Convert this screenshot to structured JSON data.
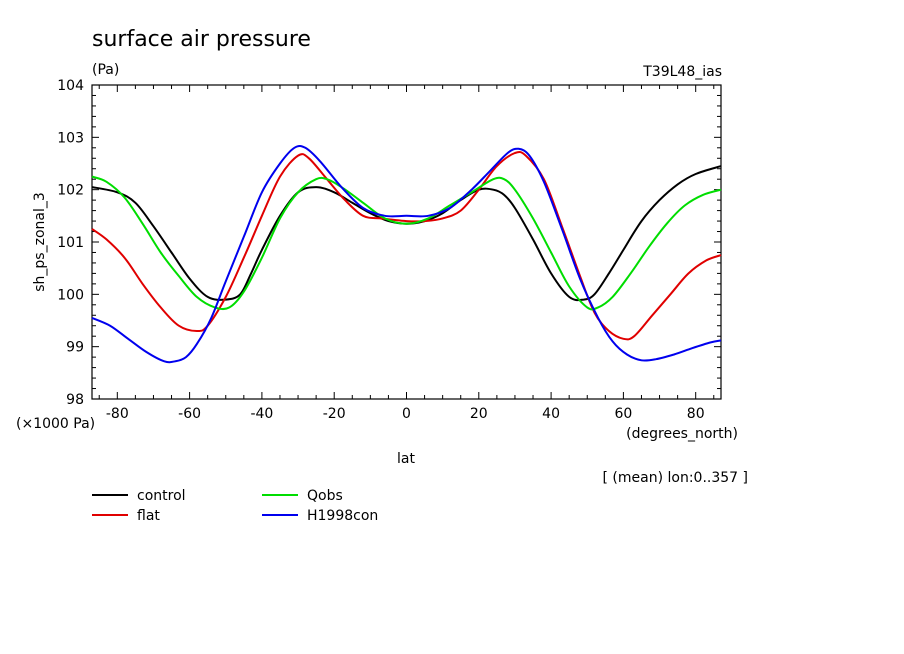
{
  "header": {
    "title": "surface air pressure",
    "unit": "(Pa)",
    "run_label": "T39L48_ias",
    "scale_label": "(×1000 Pa)",
    "x_unit": "(degrees_north)",
    "subset_note": "[ (mean) lon:0..357 ]"
  },
  "chart_data": {
    "type": "line",
    "title": "surface air pressure",
    "xlabel": "lat",
    "ylabel": "sh_ps_zonal_3",
    "xlim": [
      -87,
      87
    ],
    "ylim": [
      98,
      104
    ],
    "x_ticks": [
      -80,
      -60,
      -40,
      -20,
      0,
      20,
      40,
      60,
      80
    ],
    "y_ticks": [
      98,
      99,
      100,
      101,
      102,
      103,
      104
    ],
    "grid": false,
    "legend_position": "bottom-left",
    "series": [
      {
        "name": "control",
        "color": "#000000",
        "points": [
          [
            -87,
            102.05
          ],
          [
            -80,
            101.95
          ],
          [
            -75,
            101.75
          ],
          [
            -70,
            101.3
          ],
          [
            -65,
            100.8
          ],
          [
            -60,
            100.3
          ],
          [
            -55,
            99.95
          ],
          [
            -50,
            99.9
          ],
          [
            -46,
            100.0
          ],
          [
            -43,
            100.4
          ],
          [
            -40,
            100.85
          ],
          [
            -35,
            101.5
          ],
          [
            -30,
            101.95
          ],
          [
            -25,
            102.05
          ],
          [
            -20,
            101.95
          ],
          [
            -15,
            101.75
          ],
          [
            -10,
            101.55
          ],
          [
            -5,
            101.4
          ],
          [
            0,
            101.35
          ],
          [
            5,
            101.4
          ],
          [
            10,
            101.55
          ],
          [
            15,
            101.8
          ],
          [
            20,
            102.0
          ],
          [
            24,
            102.0
          ],
          [
            27,
            101.9
          ],
          [
            30,
            101.65
          ],
          [
            35,
            101.05
          ],
          [
            40,
            100.4
          ],
          [
            45,
            99.95
          ],
          [
            49,
            99.9
          ],
          [
            52,
            100.0
          ],
          [
            56,
            100.4
          ],
          [
            60,
            100.85
          ],
          [
            65,
            101.4
          ],
          [
            70,
            101.8
          ],
          [
            75,
            102.1
          ],
          [
            80,
            102.3
          ],
          [
            87,
            102.45
          ]
        ]
      },
      {
        "name": "flat",
        "color": "#e00000",
        "points": [
          [
            -87,
            101.25
          ],
          [
            -83,
            101.05
          ],
          [
            -78,
            100.7
          ],
          [
            -73,
            100.2
          ],
          [
            -68,
            99.75
          ],
          [
            -63,
            99.4
          ],
          [
            -58,
            99.3
          ],
          [
            -55,
            99.4
          ],
          [
            -50,
            99.95
          ],
          [
            -45,
            100.7
          ],
          [
            -40,
            101.5
          ],
          [
            -35,
            102.25
          ],
          [
            -30,
            102.65
          ],
          [
            -27,
            102.6
          ],
          [
            -22,
            102.2
          ],
          [
            -17,
            101.8
          ],
          [
            -12,
            101.5
          ],
          [
            -7,
            101.45
          ],
          [
            0,
            101.4
          ],
          [
            5,
            101.4
          ],
          [
            10,
            101.45
          ],
          [
            15,
            101.6
          ],
          [
            20,
            102.0
          ],
          [
            25,
            102.45
          ],
          [
            30,
            102.7
          ],
          [
            33,
            102.65
          ],
          [
            38,
            102.2
          ],
          [
            43,
            101.3
          ],
          [
            48,
            100.35
          ],
          [
            52,
            99.65
          ],
          [
            56,
            99.3
          ],
          [
            60,
            99.15
          ],
          [
            63,
            99.2
          ],
          [
            68,
            99.6
          ],
          [
            73,
            100.0
          ],
          [
            78,
            100.4
          ],
          [
            83,
            100.65
          ],
          [
            87,
            100.75
          ]
        ]
      },
      {
        "name": "Qobs",
        "color": "#00dd00",
        "points": [
          [
            -87,
            102.25
          ],
          [
            -83,
            102.15
          ],
          [
            -78,
            101.85
          ],
          [
            -73,
            101.35
          ],
          [
            -68,
            100.8
          ],
          [
            -63,
            100.35
          ],
          [
            -58,
            99.95
          ],
          [
            -53,
            99.75
          ],
          [
            -49,
            99.75
          ],
          [
            -45,
            100.05
          ],
          [
            -40,
            100.7
          ],
          [
            -35,
            101.45
          ],
          [
            -30,
            101.95
          ],
          [
            -25,
            102.2
          ],
          [
            -22,
            102.2
          ],
          [
            -18,
            102.05
          ],
          [
            -12,
            101.75
          ],
          [
            -6,
            101.45
          ],
          [
            0,
            101.35
          ],
          [
            6,
            101.45
          ],
          [
            12,
            101.7
          ],
          [
            18,
            101.95
          ],
          [
            24,
            102.2
          ],
          [
            27,
            102.2
          ],
          [
            30,
            102.0
          ],
          [
            35,
            101.45
          ],
          [
            40,
            100.8
          ],
          [
            45,
            100.15
          ],
          [
            50,
            99.75
          ],
          [
            53,
            99.75
          ],
          [
            57,
            99.95
          ],
          [
            62,
            100.4
          ],
          [
            67,
            100.9
          ],
          [
            72,
            101.35
          ],
          [
            77,
            101.7
          ],
          [
            82,
            101.9
          ],
          [
            87,
            102.0
          ]
        ]
      },
      {
        "name": "H1998con",
        "color": "#0000ee",
        "points": [
          [
            -87,
            99.55
          ],
          [
            -82,
            99.4
          ],
          [
            -77,
            99.15
          ],
          [
            -72,
            98.9
          ],
          [
            -67,
            98.72
          ],
          [
            -64,
            98.72
          ],
          [
            -61,
            98.8
          ],
          [
            -58,
            99.05
          ],
          [
            -54,
            99.55
          ],
          [
            -50,
            100.25
          ],
          [
            -45,
            101.1
          ],
          [
            -40,
            101.95
          ],
          [
            -35,
            102.5
          ],
          [
            -31,
            102.8
          ],
          [
            -28,
            102.8
          ],
          [
            -24,
            102.55
          ],
          [
            -18,
            102.05
          ],
          [
            -12,
            101.65
          ],
          [
            -6,
            101.5
          ],
          [
            0,
            101.5
          ],
          [
            6,
            101.5
          ],
          [
            12,
            101.65
          ],
          [
            18,
            102.0
          ],
          [
            23,
            102.35
          ],
          [
            28,
            102.7
          ],
          [
            31,
            102.78
          ],
          [
            34,
            102.65
          ],
          [
            38,
            102.15
          ],
          [
            43,
            101.25
          ],
          [
            48,
            100.3
          ],
          [
            53,
            99.55
          ],
          [
            57,
            99.1
          ],
          [
            61,
            98.85
          ],
          [
            65,
            98.74
          ],
          [
            69,
            98.76
          ],
          [
            74,
            98.85
          ],
          [
            79,
            98.97
          ],
          [
            84,
            99.08
          ],
          [
            87,
            99.12
          ]
        ]
      }
    ]
  }
}
